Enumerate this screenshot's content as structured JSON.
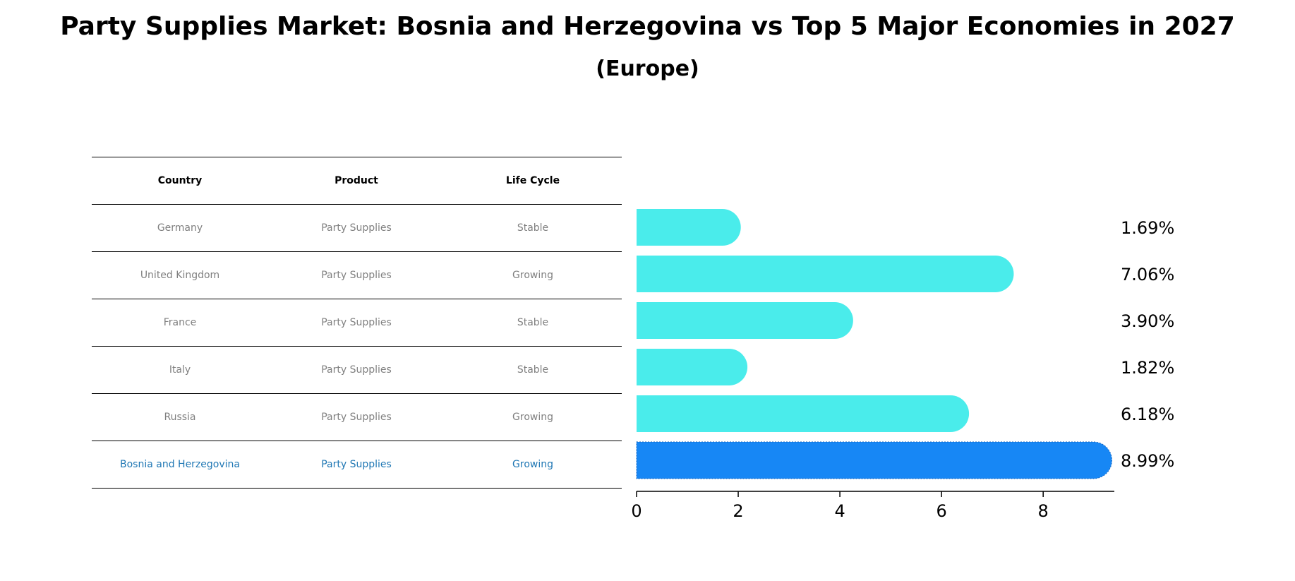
{
  "title": "Party Supplies Market: Bosnia and Herzegovina vs Top 5 Major Economies in 2027",
  "subtitle": "(Europe)",
  "table": {
    "headers": [
      "Country",
      "Product",
      "Life Cycle"
    ],
    "rows": [
      {
        "country": "Germany",
        "product": "Party Supplies",
        "life_cycle": "Stable"
      },
      {
        "country": "United Kingdom",
        "product": "Party Supplies",
        "life_cycle": "Growing"
      },
      {
        "country": "France",
        "product": "Party Supplies",
        "life_cycle": "Stable"
      },
      {
        "country": "Italy",
        "product": "Party Supplies",
        "life_cycle": "Stable"
      },
      {
        "country": "Russia",
        "product": "Party Supplies",
        "life_cycle": "Growing"
      },
      {
        "country": "Bosnia and Herzegovina",
        "product": "Party Supplies",
        "life_cycle": "Growing"
      }
    ]
  },
  "chart_data": {
    "type": "bar",
    "orientation": "horizontal",
    "title": "Party Supplies Market: Bosnia and Herzegovina vs Top 5 Major Economies in 2027",
    "subtitle": "(Europe)",
    "categories": [
      "Germany",
      "United Kingdom",
      "France",
      "Italy",
      "Russia",
      "Bosnia and Herzegovina"
    ],
    "values": [
      1.69,
      7.06,
      3.9,
      1.82,
      6.18,
      8.99
    ],
    "value_labels": [
      "1.69%",
      "7.06%",
      "3.90%",
      "1.82%",
      "6.18%",
      "8.99%"
    ],
    "xlim": [
      0,
      9.4
    ],
    "xticks": [
      0,
      2,
      4,
      6,
      8
    ],
    "xlabel": "",
    "ylabel": "",
    "grid": false,
    "highlight_index": 5,
    "colors": {
      "default_bar": "#4aeceb",
      "highlight_bar": "#1787f5",
      "highlight_text": "#1f77b4",
      "row_text": "#808080"
    }
  }
}
